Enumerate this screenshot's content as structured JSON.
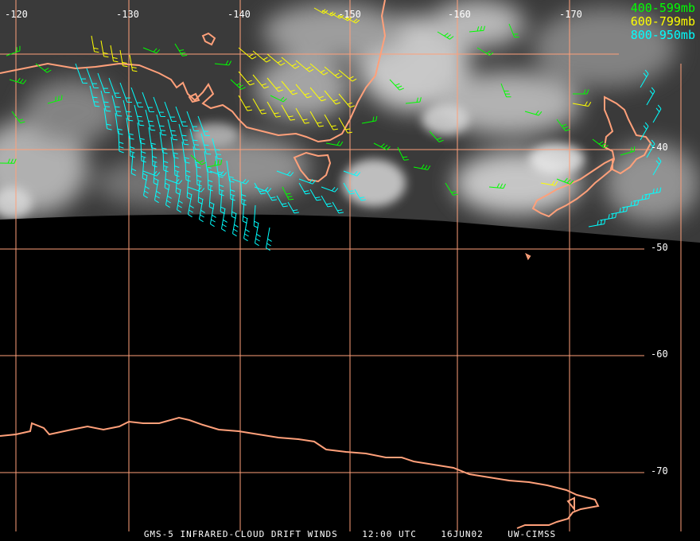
{
  "map": {
    "lon_labels": [
      "-120",
      "-130",
      "-140",
      "-150",
      "-160",
      "-170"
    ],
    "lat_labels": [
      "-40",
      "-50",
      "-60",
      "-70"
    ]
  },
  "legend": {
    "mid": {
      "label": "400-599mb",
      "color": "#00ff00"
    },
    "low_mid": {
      "label": "600-799mb",
      "color": "#ffff00"
    },
    "low": {
      "label": "800-950mb",
      "color": "#00ffff"
    }
  },
  "footer": {
    "product": "GMS-5 INFRARED-CLOUD DRIFT WINDS",
    "time": "12:00 UTC",
    "date": "16JUN02",
    "source": "UW-CIMSS"
  },
  "colors": {
    "coastline": "#ffa07a",
    "grid": "#ffa07a",
    "background": "#000000"
  }
}
